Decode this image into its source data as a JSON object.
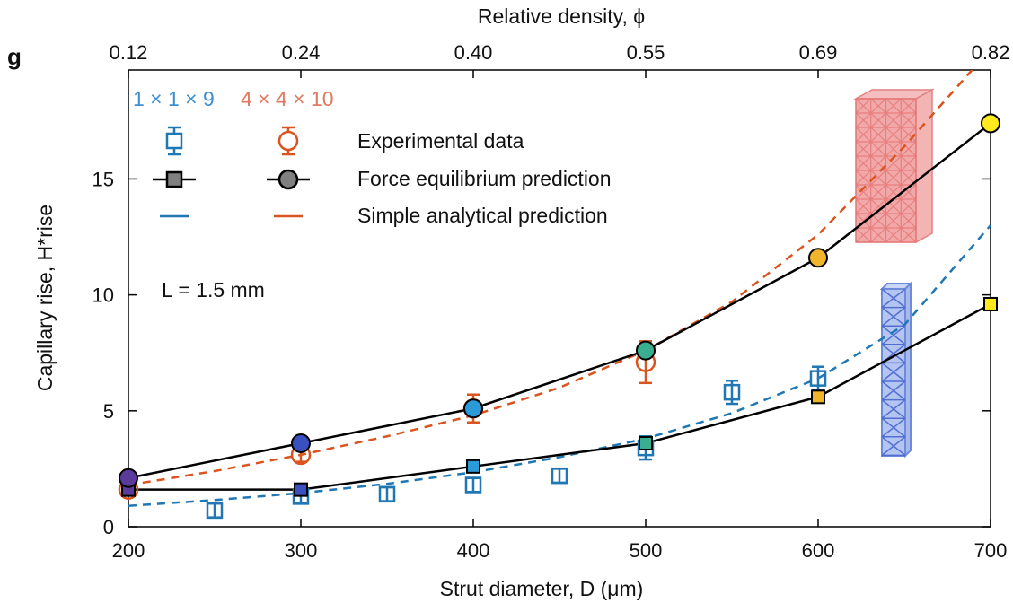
{
  "panel_label": "g",
  "chart_data": {
    "type": "scatter",
    "xlabel": "Strut diameter, D (μm)",
    "top_xlabel": "Relative density, ϕ",
    "ylabel": "Capillary rise, H*rise",
    "xlim": [
      200,
      700
    ],
    "ylim": [
      0,
      19.7
    ],
    "x_ticks": [
      200,
      300,
      400,
      500,
      600,
      700
    ],
    "y_ticks": [
      0,
      5,
      10,
      15
    ],
    "top_ticks": [
      {
        "at": 200,
        "label": "0.12"
      },
      {
        "at": 300,
        "label": "0.24"
      },
      {
        "at": 400,
        "label": "0.40"
      },
      {
        "at": 500,
        "label": "0.55"
      },
      {
        "at": 600,
        "label": "0.69"
      },
      {
        "at": 700,
        "label": "0.82"
      }
    ],
    "annotation": "L = 1.5 mm",
    "legend_headers": [
      {
        "text": "1 × 1 × 9",
        "color": "#3d8fd1"
      },
      {
        "text": "4 × 4 × 10",
        "color": "#e07a5f"
      }
    ],
    "legend_rows": [
      "Experimental data",
      "Force equilibrium prediction",
      "Simple analytical prediction"
    ],
    "colors": {
      "blue": "#1f77b4",
      "orange": "#d9541e",
      "line": "#000000",
      "label_blue": "#3d8fd1",
      "label_red": "#e07a5f"
    },
    "series": [
      {
        "name": "1 × 1 × 9 Experimental data",
        "marker": "open-square",
        "color": "#1f77b4",
        "points": [
          {
            "x": 250,
            "y": 0.7,
            "err": 0.3
          },
          {
            "x": 300,
            "y": 1.3,
            "err": 0.3
          },
          {
            "x": 350,
            "y": 1.4,
            "err": 0.3
          },
          {
            "x": 400,
            "y": 1.8,
            "err": 0.3
          },
          {
            "x": 450,
            "y": 2.2,
            "err": 0.3
          },
          {
            "x": 500,
            "y": 3.4,
            "err": 0.5
          },
          {
            "x": 550,
            "y": 5.8,
            "err": 0.5
          },
          {
            "x": 600,
            "y": 6.4,
            "err": 0.5
          }
        ]
      },
      {
        "name": "1 × 1 × 9 Force equilibrium prediction",
        "marker": "filled-square-line",
        "color": "#000000",
        "points": [
          {
            "x": 200,
            "y": 1.6,
            "fill": "#5b3a9a"
          },
          {
            "x": 300,
            "y": 1.6,
            "fill": "#3a4fc0"
          },
          {
            "x": 400,
            "y": 2.6,
            "fill": "#2b9ad8"
          },
          {
            "x": 500,
            "y": 3.6,
            "fill": "#3aae90"
          },
          {
            "x": 600,
            "y": 5.6,
            "fill": "#f0b52a"
          },
          {
            "x": 700,
            "y": 9.6,
            "fill": "#ffea1e"
          }
        ]
      },
      {
        "name": "1 × 1 × 9 Simple analytical prediction",
        "marker": "dashed-line",
        "color": "#1f77b4",
        "x": [
          200,
          250,
          300,
          350,
          400,
          450,
          500,
          550,
          600,
          650,
          700
        ],
        "y": [
          0.9,
          1.15,
          1.45,
          1.85,
          2.35,
          3.0,
          3.8,
          4.9,
          6.4,
          8.7,
          13.0
        ]
      },
      {
        "name": "4 × 4 × 10 Experimental data",
        "marker": "open-circle",
        "color": "#d9541e",
        "points": [
          {
            "x": 200,
            "y": 1.6,
            "err": 0.2
          },
          {
            "x": 300,
            "y": 3.1,
            "err": 0.3
          },
          {
            "x": 400,
            "y": 5.1,
            "err": 0.6
          },
          {
            "x": 500,
            "y": 7.1,
            "err": 0.9
          }
        ]
      },
      {
        "name": "4 × 4 × 10 Force equilibrium prediction",
        "marker": "filled-circle-line",
        "color": "#000000",
        "points": [
          {
            "x": 200,
            "y": 2.1,
            "fill": "#5b3a9a"
          },
          {
            "x": 300,
            "y": 3.6,
            "fill": "#3a4fc0"
          },
          {
            "x": 400,
            "y": 5.1,
            "fill": "#2b9ad8"
          },
          {
            "x": 500,
            "y": 7.6,
            "fill": "#3aae90"
          },
          {
            "x": 600,
            "y": 11.6,
            "fill": "#f0b52a"
          },
          {
            "x": 700,
            "y": 17.4,
            "fill": "#ffea1e"
          }
        ]
      },
      {
        "name": "4 × 4 × 10 Simple analytical prediction",
        "marker": "dashed-line",
        "color": "#d9541e",
        "x": [
          200,
          250,
          300,
          350,
          400,
          450,
          500,
          550,
          600,
          650,
          700
        ],
        "y": [
          1.8,
          2.4,
          3.1,
          3.9,
          4.8,
          6.0,
          7.6,
          9.7,
          12.6,
          16.4,
          20.6
        ]
      }
    ]
  }
}
